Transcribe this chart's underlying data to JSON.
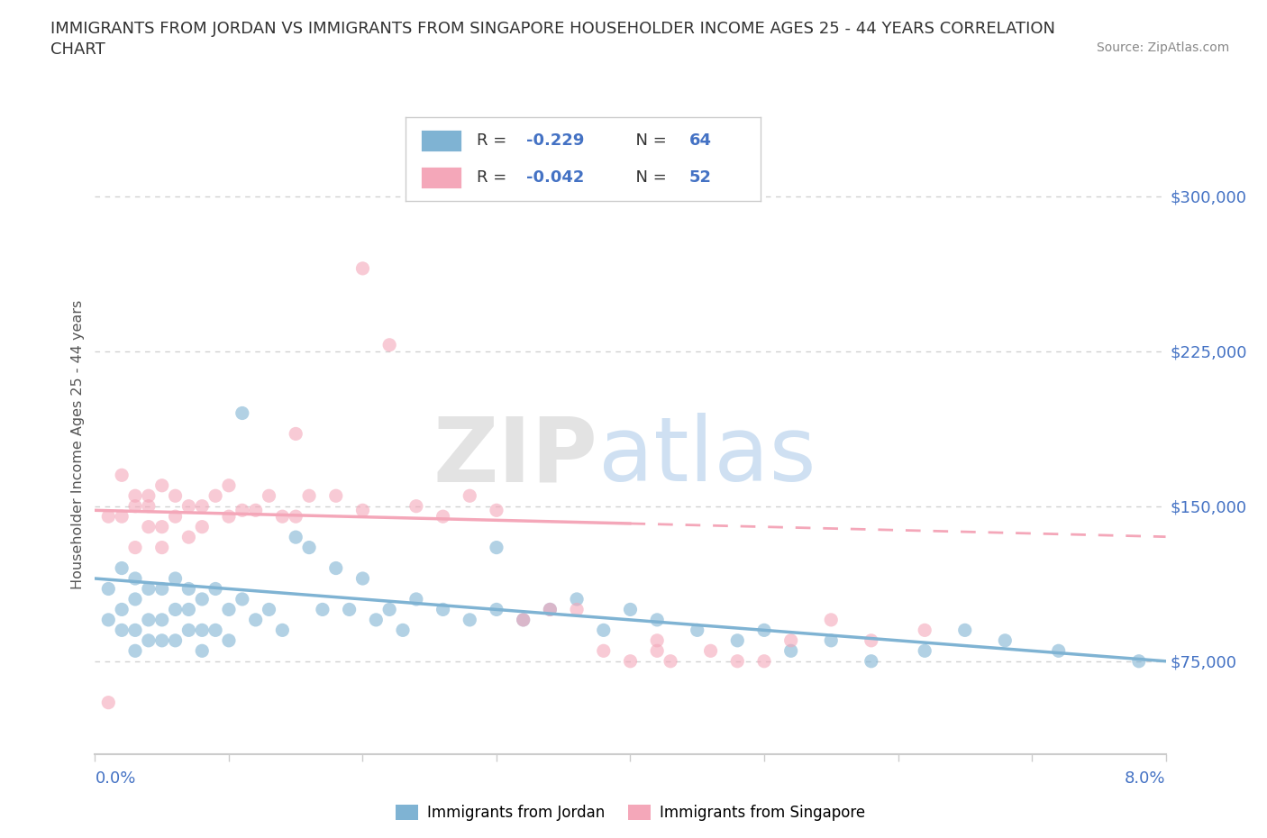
{
  "title_line1": "IMMIGRANTS FROM JORDAN VS IMMIGRANTS FROM SINGAPORE HOUSEHOLDER INCOME AGES 25 - 44 YEARS CORRELATION",
  "title_line2": "CHART",
  "source": "Source: ZipAtlas.com",
  "ylabel": "Householder Income Ages 25 - 44 years",
  "xlim": [
    0.0,
    0.08
  ],
  "ylim": [
    30000,
    330000
  ],
  "yticks": [
    75000,
    150000,
    225000,
    300000
  ],
  "ytick_labels": [
    "$75,000",
    "$150,000",
    "$225,000",
    "$300,000"
  ],
  "xtick_positions": [
    0.0,
    0.01,
    0.02,
    0.03,
    0.04,
    0.05,
    0.06,
    0.07,
    0.08
  ],
  "grid_color": "#cccccc",
  "background_color": "#ffffff",
  "jordan_color": "#7fb3d3",
  "singapore_color": "#f4a7b9",
  "jordan_R": -0.229,
  "jordan_N": 64,
  "singapore_R": -0.042,
  "singapore_N": 52,
  "jordan_line_x0": 0.0,
  "jordan_line_y0": 115000,
  "jordan_line_x1": 0.08,
  "jordan_line_y1": 75000,
  "singapore_line_x0": 0.0,
  "singapore_line_y0": 148000,
  "singapore_line_x1": 0.05,
  "singapore_line_y1": 140000,
  "watermark_zip": "ZIP",
  "watermark_atlas": "atlas",
  "title_fontsize": 13,
  "axis_color": "#4472c4",
  "text_color": "#555555",
  "legend_r_color": "#4472c4",
  "legend_n_color": "#333333"
}
